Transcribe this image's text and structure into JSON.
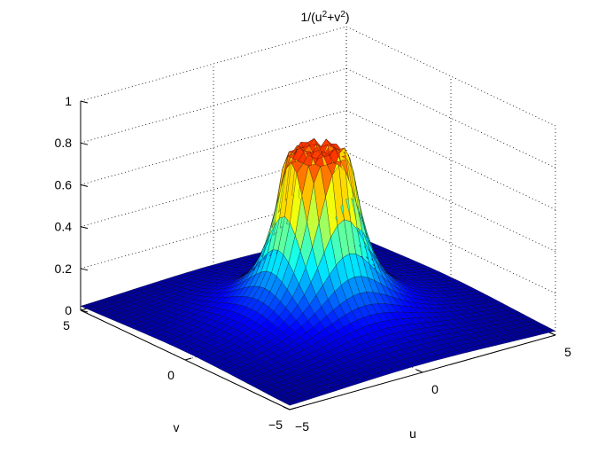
{
  "chart_data": {
    "type": "surface",
    "title_parts": {
      "lead": "1/(u",
      "exp1": "2",
      "mid": "+v",
      "exp2": "2",
      "tail": ")"
    },
    "xlabel": "u",
    "ylabel": "v",
    "xlim": [
      -5,
      5
    ],
    "ylim": [
      -5,
      5
    ],
    "zlim": [
      0,
      1
    ],
    "x_ticks": [
      -5,
      0,
      5
    ],
    "y_ticks": [
      -5,
      0,
      5
    ],
    "z_ticks": [
      0,
      0.2,
      0.4,
      0.6,
      0.8,
      1
    ],
    "x_tick_labels": [
      "−5",
      "0",
      "5"
    ],
    "y_tick_labels": [
      "−5",
      "0",
      "5"
    ],
    "z_tick_labels": [
      "0",
      "0.2",
      "0.4",
      "0.6",
      "0.8",
      "1"
    ],
    "grid": true,
    "colormap": "jet",
    "mesh_edge_color": "#000000",
    "surface": {
      "function": "z = 1/(u^2+v^2), clipped near the origin by the sampling grid",
      "u_samples": 41,
      "v_samples": 41,
      "peak_value": 0.85,
      "rim_value": 0.8,
      "half_height_radius": 1.0
    }
  }
}
